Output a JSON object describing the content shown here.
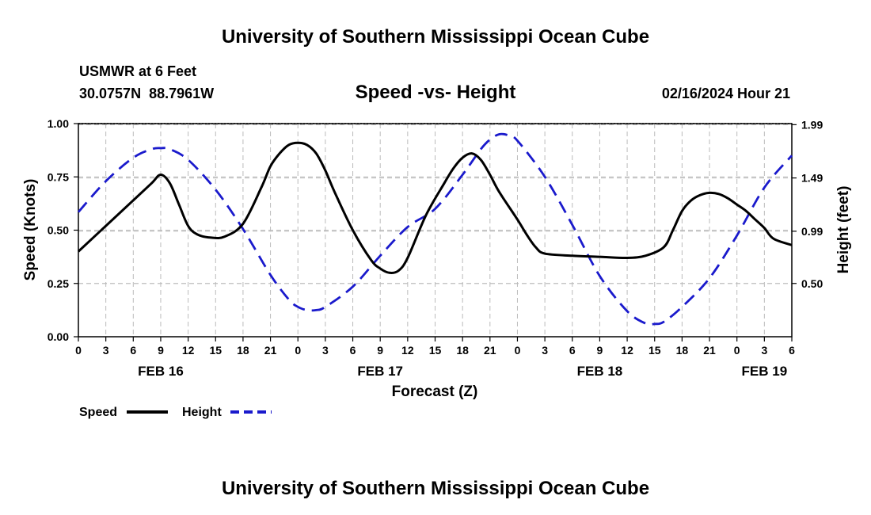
{
  "chart_data": {
    "type": "line",
    "title": "University of Southern Mississippi Ocean Cube",
    "footer_title": "University of Southern Mississippi Ocean Cube",
    "subtitle": "Speed -vs- Height",
    "station": "USMWR at 6 Feet",
    "location": "30.0757N  88.7961W",
    "timestamp": "02/16/2024 Hour 21",
    "xlabel": "Forecast (Z)",
    "ylabel_left": "Speed (Knots)",
    "ylabel_right": "Height (feet)",
    "x_unit": "hours since FEB 16 00Z",
    "xlim": [
      0,
      78
    ],
    "ylim_left": [
      0,
      1
    ],
    "ylim_right": [
      0.0,
      2.0
    ],
    "x_ticks": [
      0,
      3,
      6,
      9,
      12,
      15,
      18,
      21,
      24,
      27,
      30,
      33,
      36,
      39,
      42,
      45,
      48,
      51,
      54,
      57,
      60,
      63,
      66,
      69,
      72,
      75,
      78
    ],
    "x_tick_labels": [
      "0",
      "3",
      "6",
      "9",
      "12",
      "15",
      "18",
      "21",
      "0",
      "3",
      "6",
      "9",
      "12",
      "15",
      "18",
      "21",
      "0",
      "3",
      "6",
      "9",
      "12",
      "15",
      "18",
      "21",
      "0",
      "3",
      "6"
    ],
    "date_labels": [
      {
        "x": 9,
        "label": "FEB 16"
      },
      {
        "x": 33,
        "label": "FEB 17"
      },
      {
        "x": 57,
        "label": "FEB 18"
      },
      {
        "x": 75,
        "label": "FEB 19"
      }
    ],
    "y_left_ticks": [
      0.0,
      0.25,
      0.5,
      0.75,
      1.0
    ],
    "y_left_tick_labels": [
      "0.00",
      "0.25",
      "0.50",
      "0.75",
      "1.00"
    ],
    "y_right_ticks": [
      0.5,
      0.99,
      1.49,
      1.99
    ],
    "y_right_tick_labels": [
      "0.50",
      "0.99",
      "1.49",
      "1.99"
    ],
    "grid": true,
    "legend_placement": "bottom-left",
    "series": [
      {
        "name": "Speed",
        "axis": "left",
        "color": "#000000",
        "dash": "solid",
        "points": [
          [
            0,
            0.4
          ],
          [
            3,
            0.52
          ],
          [
            6,
            0.64
          ],
          [
            8,
            0.72
          ],
          [
            9,
            0.76
          ],
          [
            10,
            0.72
          ],
          [
            11,
            0.62
          ],
          [
            12,
            0.52
          ],
          [
            13,
            0.48
          ],
          [
            14.5,
            0.465
          ],
          [
            16,
            0.47
          ],
          [
            18,
            0.53
          ],
          [
            20,
            0.7
          ],
          [
            21,
            0.8
          ],
          [
            22,
            0.86
          ],
          [
            23,
            0.9
          ],
          [
            24,
            0.91
          ],
          [
            25,
            0.9
          ],
          [
            26,
            0.86
          ],
          [
            27,
            0.78
          ],
          [
            28,
            0.68
          ],
          [
            30,
            0.5
          ],
          [
            32,
            0.36
          ],
          [
            33,
            0.32
          ],
          [
            34,
            0.3
          ],
          [
            35,
            0.31
          ],
          [
            36,
            0.37
          ],
          [
            38,
            0.57
          ],
          [
            40,
            0.72
          ],
          [
            41,
            0.79
          ],
          [
            42,
            0.84
          ],
          [
            43,
            0.86
          ],
          [
            44,
            0.83
          ],
          [
            45,
            0.76
          ],
          [
            46,
            0.68
          ],
          [
            48,
            0.55
          ],
          [
            49,
            0.48
          ],
          [
            50,
            0.42
          ],
          [
            51,
            0.39
          ],
          [
            54,
            0.38
          ],
          [
            57,
            0.375
          ],
          [
            60,
            0.37
          ],
          [
            62,
            0.38
          ],
          [
            64,
            0.42
          ],
          [
            65,
            0.5
          ],
          [
            66,
            0.59
          ],
          [
            67,
            0.64
          ],
          [
            68,
            0.665
          ],
          [
            69,
            0.675
          ],
          [
            70,
            0.67
          ],
          [
            71,
            0.65
          ],
          [
            72,
            0.62
          ],
          [
            73,
            0.59
          ],
          [
            74,
            0.55
          ],
          [
            75,
            0.51
          ],
          [
            76,
            0.46
          ],
          [
            78,
            0.43
          ]
        ]
      },
      {
        "name": "Height",
        "axis": "right",
        "color": "#1a1acc",
        "dash": "dashed",
        "points": [
          [
            0,
            1.17
          ],
          [
            3,
            1.46
          ],
          [
            6,
            1.68
          ],
          [
            8,
            1.76
          ],
          [
            9,
            1.77
          ],
          [
            10,
            1.76
          ],
          [
            12,
            1.66
          ],
          [
            15,
            1.38
          ],
          [
            18,
            1.01
          ],
          [
            21,
            0.58
          ],
          [
            23,
            0.35
          ],
          [
            24,
            0.28
          ],
          [
            25,
            0.25
          ],
          [
            26,
            0.25
          ],
          [
            27,
            0.28
          ],
          [
            30,
            0.47
          ],
          [
            33,
            0.76
          ],
          [
            36,
            1.03
          ],
          [
            39,
            1.2
          ],
          [
            42,
            1.52
          ],
          [
            44,
            1.76
          ],
          [
            45,
            1.85
          ],
          [
            46,
            1.9
          ],
          [
            47,
            1.89
          ],
          [
            48,
            1.84
          ],
          [
            51,
            1.5
          ],
          [
            54,
            1.05
          ],
          [
            57,
            0.57
          ],
          [
            60,
            0.24
          ],
          [
            62,
            0.125
          ],
          [
            63,
            0.12
          ],
          [
            64,
            0.14
          ],
          [
            66,
            0.28
          ],
          [
            69,
            0.55
          ],
          [
            72,
            0.95
          ],
          [
            75,
            1.4
          ],
          [
            78,
            1.7
          ]
        ]
      }
    ]
  }
}
